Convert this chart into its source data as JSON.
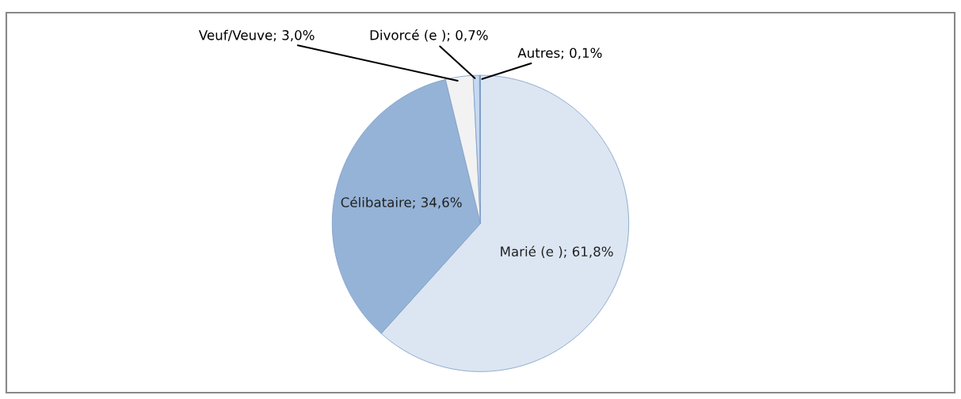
{
  "chart_data": {
    "type": "pie",
    "categories": [
      "Marié (e )",
      "Célibataire",
      "Veuf/Veuve",
      "Divorcé (e )",
      "Autres"
    ],
    "values": [
      61.8,
      34.6,
      3.0,
      0.7,
      0.1
    ],
    "value_labels": [
      "61,8%",
      "34,6%",
      "3,0%",
      "0,7%",
      "0,1%"
    ],
    "colors": [
      "#dce6f2",
      "#95b3d7",
      "#f2f2f2",
      "#c6d9f1",
      "#4f81bd"
    ]
  }
}
